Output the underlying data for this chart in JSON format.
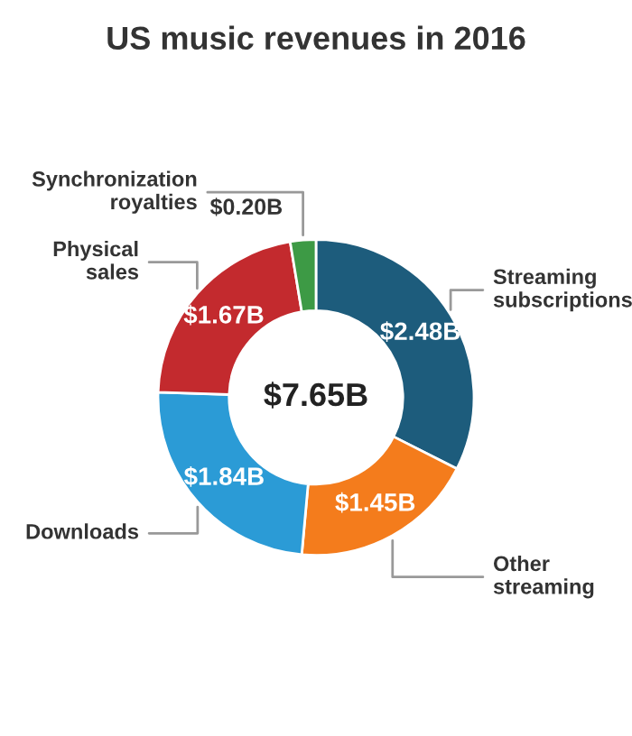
{
  "chart_data": {
    "type": "donut",
    "title": "US music revenues in 2016",
    "categories": [
      "Streaming\nsubscriptions",
      "Other\nstreaming",
      "Downloads",
      "Physical\nsales",
      "Synchronization\nroyalties"
    ],
    "values": [
      2.48,
      1.45,
      1.84,
      1.67,
      0.2
    ],
    "colors": [
      "#1d5c7c",
      "#f47c1c",
      "#2b9bd6",
      "#c32a2e",
      "#3d9a45"
    ],
    "value_labels": [
      "$2.48B",
      "$1.45B",
      "$1.84B",
      "$1.67B",
      "$0.20B"
    ],
    "annotations": [
      "$7.65B"
    ],
    "legend": false
  }
}
